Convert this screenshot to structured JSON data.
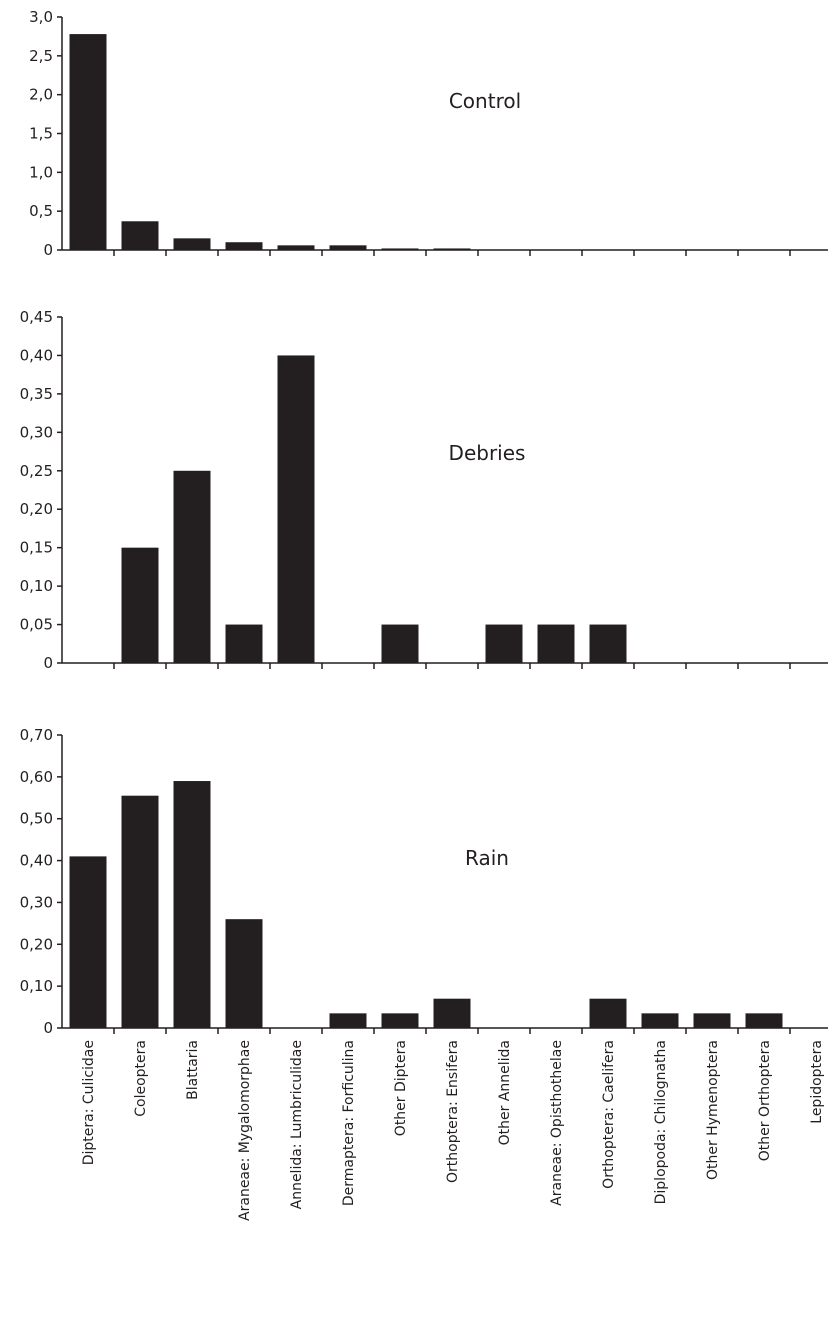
{
  "chart_data": [
    {
      "type": "bar",
      "title": "Control",
      "categories": [
        "Diptera: Culicidae",
        "Coleoptera",
        "Blattaria",
        "Araneae: Mygalomorphae",
        "Annelida: Lumbriculidae",
        "Dermaptera: Forficulina",
        "Other Diptera",
        "Orthoptera: Ensifera",
        "Other Annelida",
        "Araneae: Opisthothelae",
        "Orthoptera: Caelifera",
        "Diplopoda: Chilognatha",
        "Other Hymenoptera",
        "Other Orthoptera",
        "Lepidoptera"
      ],
      "values": [
        2.78,
        0.37,
        0.15,
        0.1,
        0.06,
        0.06,
        0.02,
        0.02,
        0,
        0,
        0,
        0,
        0,
        0,
        0
      ],
      "ylim": [
        0,
        3.0
      ],
      "yticks": [
        "0",
        "0,5",
        "1,0",
        "1,5",
        "2,0",
        "2,5",
        "3,0"
      ],
      "xlabel": "",
      "ylabel": "",
      "bar_color": "#231f20"
    },
    {
      "type": "bar",
      "title": "Debries",
      "categories": [
        "Diptera: Culicidae",
        "Coleoptera",
        "Blattaria",
        "Araneae: Mygalomorphae",
        "Annelida: Lumbriculidae",
        "Dermaptera: Forficulina",
        "Other Diptera",
        "Orthoptera: Ensifera",
        "Other Annelida",
        "Araneae: Opisthothelae",
        "Orthoptera: Caelifera",
        "Diplopoda: Chilognatha",
        "Other Hymenoptera",
        "Other Orthoptera",
        "Lepidoptera"
      ],
      "values": [
        0,
        0.15,
        0.25,
        0.05,
        0.4,
        0,
        0.05,
        0,
        0.05,
        0.05,
        0.05,
        0,
        0,
        0,
        0
      ],
      "ylim": [
        0,
        0.45
      ],
      "yticks": [
        "0",
        "0,05",
        "0,10",
        "0,15",
        "0,20",
        "0,25",
        "0,30",
        "0,35",
        "0,40",
        "0,45"
      ],
      "xlabel": "",
      "ylabel": "",
      "bar_color": "#231f20"
    },
    {
      "type": "bar",
      "title": "Rain",
      "categories": [
        "Diptera: Culicidae",
        "Coleoptera",
        "Blattaria",
        "Araneae: Mygalomorphae",
        "Annelida: Lumbriculidae",
        "Dermaptera: Forficulina",
        "Other Diptera",
        "Orthoptera: Ensifera",
        "Other Annelida",
        "Araneae: Opisthothelae",
        "Orthoptera: Caelifera",
        "Diplopoda: Chilognatha",
        "Other Hymenoptera",
        "Other Orthoptera",
        "Lepidoptera"
      ],
      "values": [
        0.41,
        0.555,
        0.59,
        0.26,
        0,
        0.035,
        0.035,
        0.07,
        0,
        0,
        0.07,
        0.035,
        0.035,
        0.035,
        0
      ],
      "ylim": [
        0,
        0.7
      ],
      "yticks": [
        "0",
        "0,10",
        "0,20",
        "0,30",
        "0,40",
        "0,50",
        "0,60",
        "0,70"
      ],
      "xlabel": "",
      "ylabel": "",
      "bar_color": "#231f20"
    }
  ]
}
